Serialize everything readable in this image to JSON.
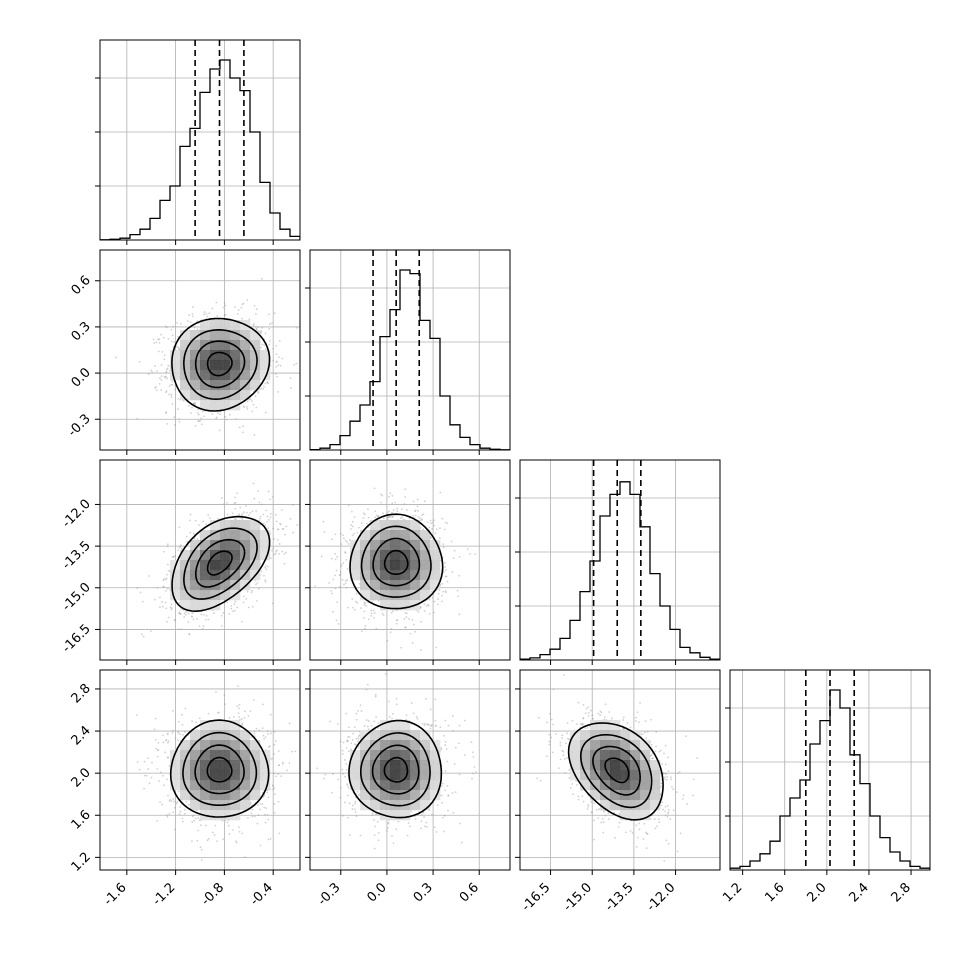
{
  "chart_data": {
    "type": "corner",
    "parameters": 4,
    "grid": true,
    "ticks": [
      [
        "-1.6",
        "-1.2",
        "-0.8",
        "-0.4"
      ],
      [
        "-0.3",
        "0.0",
        "0.3",
        "0.6"
      ],
      [
        "-16.5",
        "-15.0",
        "-13.5",
        "-12.0"
      ],
      [
        "1.2",
        "1.6",
        "2.0",
        "2.4",
        "2.8"
      ]
    ],
    "tick_values": [
      [
        -1.6,
        -1.2,
        -0.8,
        -0.4
      ],
      [
        -0.3,
        0.0,
        0.3,
        0.6
      ],
      [
        -16.5,
        -15.0,
        -13.5,
        -12.0
      ],
      [
        1.2,
        1.6,
        2.0,
        2.4,
        2.8
      ]
    ],
    "ranges": [
      [
        -1.82,
        -0.18
      ],
      [
        -0.5,
        0.8
      ],
      [
        -17.6,
        -10.4
      ],
      [
        1.08,
        2.98
      ]
    ],
    "means": [
      -0.84,
      0.06,
      -14.1,
      2.03
    ],
    "sigmas": [
      0.2,
      0.15,
      0.85,
      0.23
    ],
    "quantiles": [
      [
        -1.04,
        -0.84,
        -0.64
      ],
      [
        -0.09,
        0.06,
        0.21
      ],
      [
        -14.95,
        -14.1,
        -13.25
      ],
      [
        1.8,
        2.03,
        2.26
      ]
    ],
    "histograms": [
      {
        "bin_edges": [
          -1.82,
          -1.738,
          -1.656,
          -1.574,
          -1.492,
          -1.41,
          -1.328,
          -1.246,
          -1.164,
          -1.082,
          -1.0,
          -0.918,
          -0.836,
          -0.754,
          -0.672,
          -0.59,
          -0.508,
          -0.426,
          -0.344,
          -0.262,
          -0.18
        ],
        "counts": [
          0.001,
          0.004,
          0.01,
          0.03,
          0.06,
          0.12,
          0.22,
          0.3,
          0.52,
          0.62,
          0.82,
          0.95,
          1.0,
          0.9,
          0.83,
          0.6,
          0.32,
          0.15,
          0.06,
          0.02
        ]
      },
      {
        "bin_edges": [
          -0.5,
          -0.435,
          -0.37,
          -0.305,
          -0.24,
          -0.175,
          -0.11,
          -0.045,
          0.02,
          0.085,
          0.15,
          0.215,
          0.28,
          0.345,
          0.41,
          0.475,
          0.54,
          0.605,
          0.67,
          0.735,
          0.8
        ],
        "counts": [
          0.002,
          0.01,
          0.03,
          0.08,
          0.16,
          0.25,
          0.38,
          0.63,
          0.78,
          1.0,
          0.98,
          0.72,
          0.62,
          0.3,
          0.14,
          0.07,
          0.03,
          0.01,
          0.004,
          0.001
        ]
      },
      {
        "bin_edges": [
          -17.6,
          -17.24,
          -16.88,
          -16.52,
          -16.16,
          -15.8,
          -15.44,
          -15.08,
          -14.72,
          -14.36,
          -14.0,
          -13.64,
          -13.28,
          -12.92,
          -12.56,
          -12.2,
          -11.84,
          -11.48,
          -11.12,
          -10.76,
          -10.4
        ],
        "counts": [
          0.005,
          0.012,
          0.03,
          0.06,
          0.12,
          0.22,
          0.38,
          0.55,
          0.8,
          0.92,
          0.99,
          0.92,
          0.74,
          0.48,
          0.3,
          0.17,
          0.07,
          0.04,
          0.015,
          0.005
        ]
      },
      {
        "bin_edges": [
          1.08,
          1.175,
          1.27,
          1.365,
          1.46,
          1.555,
          1.65,
          1.745,
          1.84,
          1.935,
          2.03,
          2.125,
          2.22,
          2.315,
          2.41,
          2.505,
          2.6,
          2.695,
          2.79,
          2.885,
          2.98
        ],
        "counts": [
          0.01,
          0.02,
          0.05,
          0.09,
          0.16,
          0.3,
          0.4,
          0.5,
          0.7,
          0.83,
          1.0,
          0.9,
          0.64,
          0.48,
          0.3,
          0.18,
          0.1,
          0.05,
          0.02,
          0.01
        ]
      }
    ],
    "correlations": {
      "1-0": 0.05,
      "2-0": 0.45,
      "2-1": 0.0,
      "3-0": 0.0,
      "3-1": 0.0,
      "3-2": -0.35
    },
    "contour_levels_sigma": [
      0.5,
      1.0,
      1.5,
      2.0
    ],
    "colors": {
      "line": "#000000",
      "grid": "#b0b0b0",
      "scatter": "#9a9a9a",
      "density_dark": "#3c3c3c"
    }
  }
}
